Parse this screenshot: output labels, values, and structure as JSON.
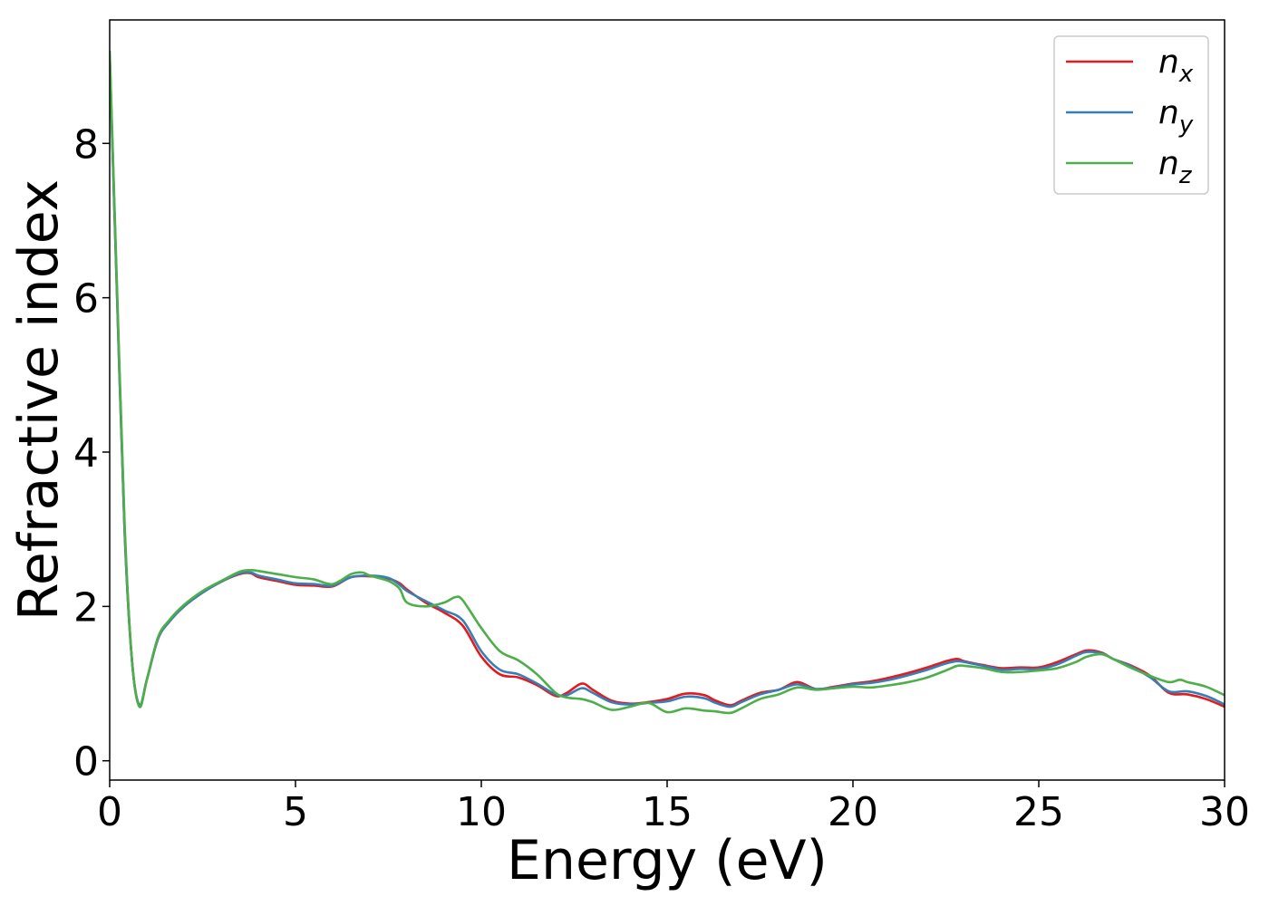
{
  "chart_data": {
    "type": "line",
    "title": "",
    "xlabel": "Energy (eV)",
    "ylabel": "Refractive index",
    "xlim": [
      0,
      30
    ],
    "ylim": [
      -0.25,
      9.6
    ],
    "xticks": [
      0,
      5,
      10,
      15,
      20,
      25,
      30
    ],
    "xtick_labels": [
      "0",
      "5",
      "10",
      "15",
      "20",
      "25",
      "30"
    ],
    "yticks": [
      0,
      2,
      4,
      6,
      8
    ],
    "ytick_labels": [
      "0",
      "2",
      "4",
      "6",
      "8"
    ],
    "grid": false,
    "legend": {
      "position": "top-right"
    },
    "series": [
      {
        "name": "n_x",
        "base": "n",
        "sub": "x",
        "color": "#e41a1c",
        "x": [
          0,
          0.2,
          0.4,
          0.6,
          0.8,
          1.0,
          1.3,
          1.6,
          2.0,
          2.5,
          3.0,
          3.5,
          3.8,
          4.0,
          4.5,
          5.0,
          5.5,
          6.0,
          6.5,
          7.0,
          7.5,
          7.8,
          8.0,
          8.5,
          9.0,
          9.5,
          10.0,
          10.5,
          11.0,
          11.5,
          12.0,
          12.3,
          12.7,
          13.0,
          13.5,
          14.0,
          14.5,
          15.0,
          15.5,
          16.0,
          16.3,
          16.7,
          17.0,
          17.5,
          18.0,
          18.5,
          19.0,
          19.5,
          20.0,
          20.5,
          21.0,
          21.5,
          22.0,
          22.5,
          22.8,
          23.0,
          23.5,
          24.0,
          24.5,
          25.0,
          25.5,
          26.0,
          26.3,
          26.7,
          27.0,
          27.5,
          28.0,
          28.5,
          29.0,
          29.5,
          30.0
        ],
        "y": [
          9.15,
          6.0,
          3.0,
          1.3,
          0.72,
          1.05,
          1.58,
          1.8,
          2.0,
          2.18,
          2.32,
          2.42,
          2.43,
          2.38,
          2.33,
          2.28,
          2.27,
          2.26,
          2.38,
          2.39,
          2.36,
          2.3,
          2.22,
          2.05,
          1.92,
          1.75,
          1.35,
          1.12,
          1.08,
          0.98,
          0.84,
          0.88,
          1.0,
          0.92,
          0.78,
          0.74,
          0.76,
          0.8,
          0.87,
          0.85,
          0.78,
          0.72,
          0.78,
          0.88,
          0.92,
          1.02,
          0.93,
          0.96,
          1.0,
          1.03,
          1.08,
          1.14,
          1.21,
          1.29,
          1.32,
          1.29,
          1.24,
          1.2,
          1.21,
          1.21,
          1.28,
          1.38,
          1.43,
          1.4,
          1.32,
          1.23,
          1.1,
          0.88,
          0.86,
          0.8,
          0.7
        ]
      },
      {
        "name": "n_y",
        "base": "n",
        "sub": "y",
        "color": "#377eb8",
        "x": [
          0,
          0.2,
          0.4,
          0.6,
          0.8,
          1.0,
          1.3,
          1.6,
          2.0,
          2.5,
          3.0,
          3.5,
          3.8,
          4.0,
          4.5,
          5.0,
          5.5,
          6.0,
          6.5,
          7.0,
          7.5,
          7.8,
          8.0,
          8.5,
          9.0,
          9.5,
          10.0,
          10.5,
          11.0,
          11.5,
          12.0,
          12.3,
          12.7,
          13.0,
          13.5,
          14.0,
          14.5,
          15.0,
          15.5,
          16.0,
          16.3,
          16.7,
          17.0,
          17.5,
          18.0,
          18.5,
          19.0,
          19.5,
          20.0,
          20.5,
          21.0,
          21.5,
          22.0,
          22.5,
          22.8,
          23.0,
          23.5,
          24.0,
          24.5,
          25.0,
          25.5,
          26.0,
          26.3,
          26.7,
          27.0,
          27.5,
          28.0,
          28.5,
          29.0,
          29.5,
          30.0
        ],
        "y": [
          9.1,
          6.0,
          3.0,
          1.3,
          0.72,
          1.05,
          1.58,
          1.8,
          2.0,
          2.18,
          2.32,
          2.43,
          2.44,
          2.4,
          2.35,
          2.3,
          2.29,
          2.27,
          2.38,
          2.4,
          2.37,
          2.28,
          2.2,
          2.07,
          1.95,
          1.82,
          1.42,
          1.18,
          1.12,
          1.0,
          0.86,
          0.85,
          0.94,
          0.88,
          0.76,
          0.73,
          0.75,
          0.77,
          0.83,
          0.81,
          0.75,
          0.7,
          0.76,
          0.86,
          0.92,
          0.99,
          0.93,
          0.95,
          0.99,
          1.01,
          1.05,
          1.11,
          1.18,
          1.26,
          1.29,
          1.28,
          1.23,
          1.18,
          1.19,
          1.19,
          1.25,
          1.36,
          1.41,
          1.39,
          1.32,
          1.22,
          1.08,
          0.9,
          0.9,
          0.84,
          0.73
        ]
      },
      {
        "name": "n_z",
        "base": "n",
        "sub": "z",
        "color": "#4daf4a",
        "x": [
          0,
          0.2,
          0.4,
          0.6,
          0.8,
          1.0,
          1.3,
          1.6,
          2.0,
          2.5,
          3.0,
          3.5,
          3.8,
          4.0,
          4.5,
          5.0,
          5.5,
          6.0,
          6.5,
          6.8,
          7.0,
          7.5,
          7.8,
          8.0,
          8.5,
          9.0,
          9.3,
          9.5,
          10.0,
          10.5,
          11.0,
          11.5,
          12.0,
          12.3,
          12.7,
          13.0,
          13.5,
          14.0,
          14.5,
          15.0,
          15.5,
          16.0,
          16.3,
          16.7,
          17.0,
          17.5,
          18.0,
          18.5,
          19.0,
          19.5,
          20.0,
          20.5,
          21.0,
          21.5,
          22.0,
          22.5,
          22.8,
          23.0,
          23.5,
          24.0,
          24.5,
          25.0,
          25.5,
          26.0,
          26.3,
          26.7,
          27.0,
          27.5,
          28.0,
          28.5,
          28.8,
          29.0,
          29.5,
          30.0
        ],
        "y": [
          9.2,
          6.1,
          3.1,
          1.3,
          0.7,
          1.05,
          1.6,
          1.82,
          2.02,
          2.2,
          2.33,
          2.45,
          2.47,
          2.46,
          2.42,
          2.38,
          2.35,
          2.29,
          2.42,
          2.44,
          2.4,
          2.33,
          2.23,
          2.05,
          2.0,
          2.05,
          2.12,
          2.08,
          1.72,
          1.42,
          1.3,
          1.12,
          0.88,
          0.82,
          0.8,
          0.76,
          0.66,
          0.7,
          0.75,
          0.63,
          0.68,
          0.65,
          0.64,
          0.62,
          0.68,
          0.8,
          0.86,
          0.95,
          0.92,
          0.94,
          0.96,
          0.95,
          0.98,
          1.02,
          1.08,
          1.17,
          1.23,
          1.23,
          1.2,
          1.15,
          1.15,
          1.17,
          1.2,
          1.28,
          1.35,
          1.38,
          1.32,
          1.2,
          1.1,
          1.02,
          1.05,
          1.02,
          0.96,
          0.85
        ]
      }
    ]
  }
}
